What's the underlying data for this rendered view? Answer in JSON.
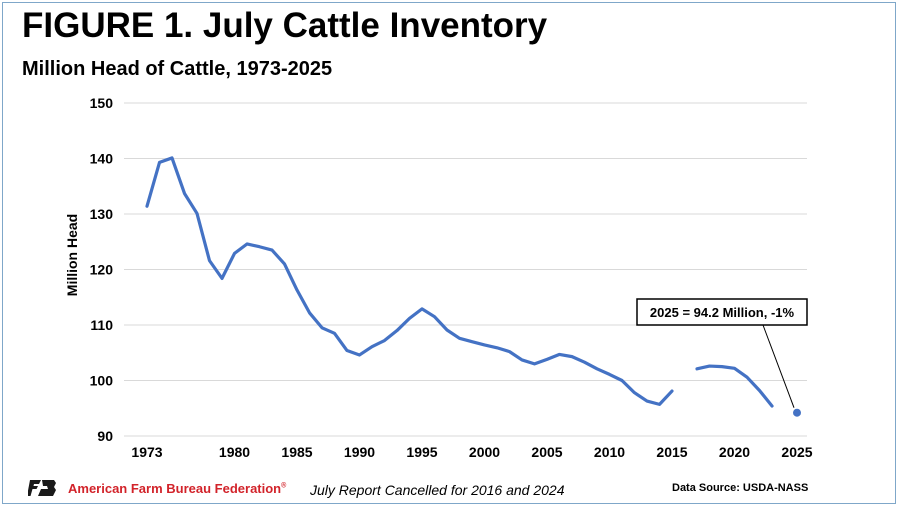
{
  "header": {
    "title": "FIGURE 1. July Cattle Inventory",
    "subtitle": "Million Head of Cattle, 1973-2025"
  },
  "footer": {
    "org_name": "American Farm Bureau Federation",
    "org_mark": "®",
    "note": "July Report Cancelled for 2016 and 2024",
    "source": "Data Source:  USDA-NASS"
  },
  "colors": {
    "line": "#4472c4",
    "org": "#d2232a"
  },
  "chart_data": {
    "type": "line",
    "ylabel": "Million Head",
    "xlabel": "",
    "ylim": [
      90,
      150
    ],
    "xlim": [
      1973,
      2025
    ],
    "yticks": [
      90,
      100,
      110,
      120,
      130,
      140,
      150
    ],
    "xticks": [
      1973,
      1980,
      1985,
      1990,
      1995,
      2000,
      2005,
      2010,
      2015,
      2020,
      2025
    ],
    "grid": "horizontal",
    "series": [
      {
        "x": [
          1973,
          1974,
          1975,
          1976,
          1977,
          1978,
          1979,
          1980,
          1981,
          1982,
          1983,
          1984,
          1985,
          1986,
          1987,
          1988,
          1989,
          1990,
          1991,
          1992,
          1993,
          1994,
          1995,
          1996,
          1997,
          1998,
          1999,
          2000,
          2001,
          2002,
          2003,
          2004,
          2005,
          2006,
          2007,
          2008,
          2009,
          2010,
          2011,
          2012,
          2013,
          2014,
          2015,
          2016,
          2017,
          2018,
          2019,
          2020,
          2021,
          2022,
          2023,
          2024,
          2025
        ],
        "values": [
          131.4,
          139.3,
          140.1,
          133.7,
          130.1,
          121.6,
          118.4,
          122.9,
          124.6,
          124.1,
          123.5,
          121.0,
          116.3,
          112.2,
          109.5,
          108.5,
          105.4,
          104.6,
          106.1,
          107.2,
          109.0,
          111.2,
          112.9,
          111.5,
          109.1,
          107.6,
          107.0,
          106.4,
          105.9,
          105.2,
          103.7,
          103.0,
          103.8,
          104.7,
          104.3,
          103.3,
          102.1,
          101.1,
          100.0,
          97.8,
          96.3,
          95.7,
          98.1,
          null,
          102.1,
          102.6,
          102.5,
          102.2,
          100.6,
          98.2,
          95.4,
          null,
          94.2
        ]
      }
    ],
    "annotations": [
      {
        "text": "2025 = 94.2 Million, -1%",
        "x": 2025,
        "y": 94.2
      }
    ]
  }
}
